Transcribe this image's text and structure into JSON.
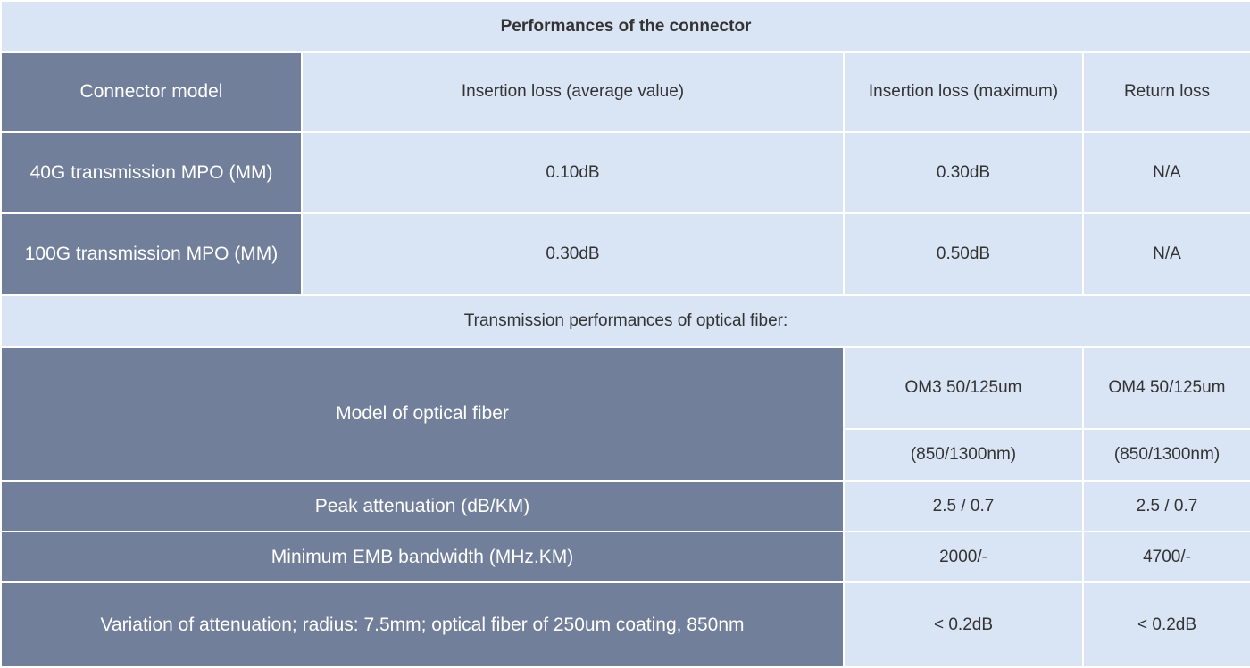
{
  "connector_table": {
    "title": "Performances of the connector",
    "header": [
      "Connector model",
      "Insertion loss (average value)",
      "Insertion loss (maximum)",
      "Return loss"
    ],
    "rows": [
      [
        "40G transmission MPO (MM)",
        "0.10dB",
        "0.30dB",
        "N/A"
      ],
      [
        "100G transmission MPO (MM)",
        "0.30dB",
        "0.50dB",
        "N/A"
      ]
    ]
  },
  "fiber_table": {
    "title": "Transmission performances of optical fiber:",
    "header": {
      "label": "Model of optical fiber",
      "columns": [
        [
          "OM3 50/125um",
          "(850/1300nm)"
        ],
        [
          "OM4 50/125um",
          "(850/1300nm)"
        ]
      ]
    },
    "rows": [
      [
        "Peak attenuation (dB/KM)",
        "2.5 / 0.7",
        "2.5 / 0.7"
      ],
      [
        "Minimum EMB bandwidth (MHz.KM)",
        "2000/-",
        "4700/-"
      ],
      [
        "Variation of attenuation; radius: 7.5mm; optical fiber of 250um coating, 850nm",
        "< 0.2dB",
        "< 0.2dB"
      ]
    ]
  }
}
